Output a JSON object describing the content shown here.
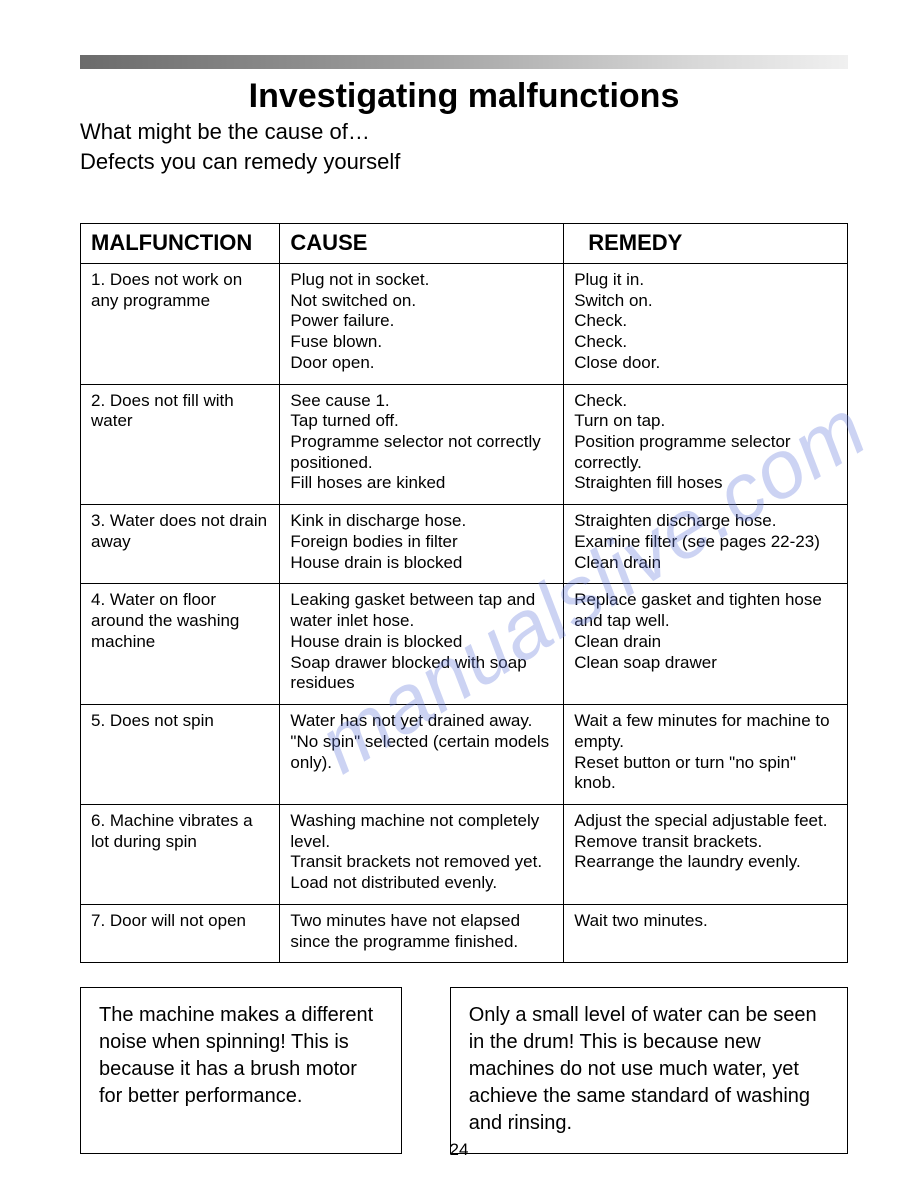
{
  "title": "Investigating malfunctions",
  "subtitle_line1": "What might be the cause of…",
  "subtitle_line2": "Defects you can remedy yourself",
  "watermark": "manualslive.com",
  "page_number": "24",
  "table": {
    "columns": [
      "MALFUNCTION",
      "CAUSE",
      "REMEDY"
    ],
    "rows": [
      {
        "malfunction": "1. Does not work on any programme",
        "cause": "Plug not in socket.\nNot switched on.\nPower failure.\nFuse blown.\nDoor open.",
        "remedy": "Plug it in.\nSwitch on.\nCheck.\nCheck.\nClose door."
      },
      {
        "malfunction": "2. Does not fill with water",
        "cause": "See cause 1.\nTap turned off.\nProgramme selector not correctly positioned.\nFill hoses are kinked",
        "remedy": "Check.\nTurn on tap.\nPosition programme selector correctly.\nStraighten fill hoses"
      },
      {
        "malfunction": "3. Water does not drain away",
        "cause": "Kink in discharge hose.\nForeign bodies in filter\nHouse drain is blocked",
        "remedy": "Straighten discharge hose.\nExamine filter (see pages 22-23)\nClean drain"
      },
      {
        "malfunction": "4. Water on floor around the washing machine",
        "cause": "Leaking gasket between tap and water inlet hose.\nHouse drain is blocked\nSoap drawer blocked with soap residues",
        "remedy": "Replace gasket and tighten hose and tap well.\nClean drain\nClean soap drawer"
      },
      {
        "malfunction": "5. Does not spin",
        "cause": "Water has not yet drained away.\n\"No spin\" selected (certain models only).",
        "remedy": "Wait a few minutes for machine to empty.\nReset button or turn \"no spin\" knob."
      },
      {
        "malfunction": "6. Machine vibrates a lot during spin",
        "cause": "Washing machine not completely level.\nTransit brackets not removed yet.\nLoad not distributed evenly.",
        "remedy": "Adjust the special adjustable feet.\nRemove transit brackets.\nRearrange the laundry evenly."
      },
      {
        "malfunction": "7. Door will not open",
        "cause": "Two minutes have not elapsed since the programme finished.",
        "remedy": "Wait two minutes."
      }
    ]
  },
  "notes": {
    "left": "The machine makes a different noise when spinning! This is because it has a brush motor for better performance.",
    "right": "Only a small level of water can be seen in the drum! This is because new machines do not use much water, yet achieve the same standard of washing and rinsing."
  },
  "colors": {
    "text": "#000000",
    "background": "#ffffff",
    "border": "#000000",
    "watermark": "rgba(110,130,220,0.35)",
    "bar_gradient_start": "#6b6b6b",
    "bar_gradient_end": "#f0f0f0"
  },
  "typography": {
    "title_fontsize": 34,
    "subtitle_fontsize": 22,
    "table_header_fontsize": 22,
    "table_body_fontsize": 17,
    "note_fontsize": 20,
    "font_family": "Arial"
  }
}
